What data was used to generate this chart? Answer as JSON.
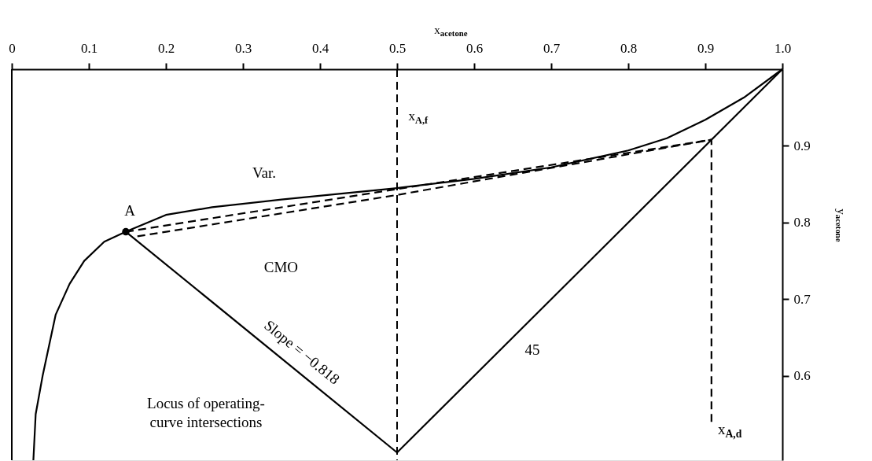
{
  "chart_data": {
    "type": "line",
    "xlabel": "x$_{acetone}$",
    "ylabel": "y$_{acetone}$",
    "xlim": [
      0,
      1.0
    ],
    "ylim": [
      0.49,
      1.0
    ],
    "xticks": [
      0,
      0.1,
      0.2,
      0.3,
      0.4,
      0.5,
      0.6,
      0.7,
      0.8,
      0.9,
      {
        "value": 1.0,
        "label": "1.0"
      }
    ],
    "yticks": [
      0.6,
      0.7,
      0.8,
      0.9
    ],
    "series": [
      {
        "color": "#000000",
        "line_style": "solid",
        "x": [
          0.028,
          0.031,
          0.04,
          0.057,
          0.075,
          0.094,
          0.12,
          0.148,
          0.2,
          0.26,
          0.35,
          0.5,
          0.6,
          0.7,
          0.8,
          0.85,
          0.9,
          0.95,
          1.0
        ],
        "values": [
          0.49,
          0.55,
          0.6,
          0.68,
          0.72,
          0.75,
          0.775,
          0.788,
          0.81,
          0.82,
          0.83,
          0.845,
          0.857,
          0.872,
          0.894,
          0.91,
          0.934,
          0.963,
          1.0
        ]
      },
      {
        "color": "#000000",
        "line_style": "solid",
        "x": [
          0.148,
          0.5
        ],
        "values": [
          0.788,
          0.5
        ]
      },
      {
        "color": "#000000",
        "line_style": "solid",
        "x": [
          0.5,
          1.0
        ],
        "values": [
          0.5,
          1.0
        ]
      },
      {
        "color": "#000000",
        "line_style": "dashed",
        "x": [
          0.148,
          0.908
        ],
        "values": [
          0.788,
          0.908
        ]
      },
      {
        "color": "#000000",
        "line_style": "dashed",
        "x": [
          0.163,
          0.5,
          0.908
        ],
        "values": [
          0.782,
          0.836,
          0.908
        ]
      },
      {
        "color": "#000000",
        "line_style": "dashed",
        "x": [
          0.908,
          0.908
        ],
        "values": [
          0.54,
          0.908
        ]
      },
      {
        "type": "scatter",
        "color": "#000000",
        "marker": "circle",
        "x": [
          0.148
        ],
        "values": [
          0.788
        ]
      }
    ],
    "ref_lines": [
      {
        "axis": "x",
        "value": 0.5,
        "label": "x$_{A,f}$",
        "color": "#000000",
        "line_style": "dashed"
      }
    ],
    "annotations": [
      "A",
      "Var.",
      "CMO",
      "Slope = −0.818",
      "45",
      "Locus of operating-curve intersections",
      "x$_{A,d}$"
    ]
  }
}
